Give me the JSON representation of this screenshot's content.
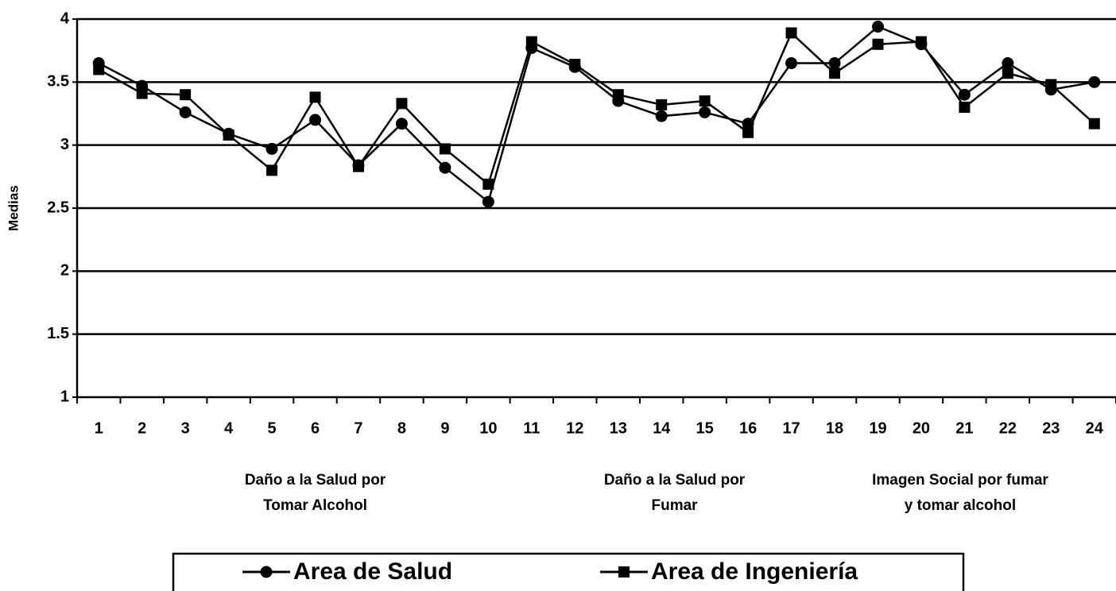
{
  "chart_data": {
    "type": "line",
    "ylabel": "Medias",
    "categories": [
      "1",
      "2",
      "3",
      "4",
      "5",
      "6",
      "7",
      "8",
      "9",
      "10",
      "11",
      "12",
      "13",
      "14",
      "15",
      "16",
      "17",
      "18",
      "19",
      "20",
      "21",
      "22",
      "23",
      "24"
    ],
    "series": [
      {
        "name": "Area de Salud",
        "color": "#000000",
        "marker": "circle",
        "values": [
          3.65,
          3.47,
          3.26,
          3.09,
          2.97,
          3.2,
          2.84,
          3.17,
          2.82,
          2.55,
          3.77,
          3.62,
          3.35,
          3.23,
          3.26,
          3.17,
          3.65,
          3.65,
          3.94,
          3.8,
          3.4,
          3.65,
          3.44,
          3.5
        ]
      },
      {
        "name": "Area de Ingeniería",
        "color": "#000000",
        "marker": "square",
        "values": [
          3.6,
          3.41,
          3.4,
          3.08,
          2.8,
          3.38,
          2.83,
          3.33,
          2.97,
          2.69,
          3.82,
          3.64,
          3.4,
          3.32,
          3.35,
          3.1,
          3.89,
          3.57,
          3.8,
          3.82,
          3.3,
          3.57,
          3.48,
          3.17
        ]
      }
    ],
    "ylim": [
      1,
      4
    ],
    "yticks": [
      1,
      1.5,
      2,
      2.5,
      3,
      3.5,
      4
    ],
    "grid": true,
    "group_labels": [
      [
        "Daño a la Salud por",
        "Tomar Alcohol"
      ],
      [
        "Daño a la Salud por",
        "Fumar"
      ],
      [
        "Imagen Social por fumar",
        "y tomar alcohol"
      ]
    ]
  }
}
